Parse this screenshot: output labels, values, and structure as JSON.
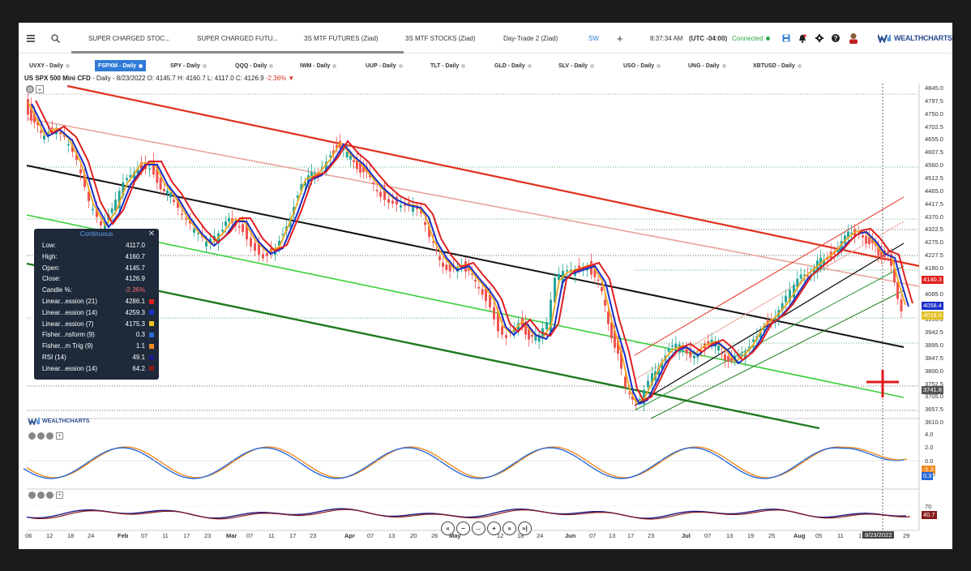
{
  "topbar": {
    "menu_icon": "hamburger-icon",
    "search_icon": "search-icon",
    "tabs": [
      "SUPER CHARGED STOC...",
      "SUPER CHARGED FUTU...",
      "3S MTF FUTURES (Ziad)",
      "3S MTF STOCKS (Ziad)",
      "Day-Trade 2 (Ziad)",
      "SW"
    ],
    "add_label": "+",
    "time": "8:37:34 AM",
    "timezone": "(UTC -04:00)",
    "status": "Connected",
    "brand": "WEALTHCHARTS"
  },
  "symbol_tabs": [
    "UVXY - Daily",
    "FSPXM - Daily",
    "SPY - Daily",
    "QQQ - Daily",
    "IWM - Daily",
    "UUP - Daily",
    "TLT - Daily",
    "GLD - Daily",
    "SLV - Daily",
    "USO - Daily",
    "UNG - Daily",
    "XBTUSD - Daily"
  ],
  "chart_header": {
    "symbol": "US SPX 500 Mini CFD",
    "detail": "- Daily - 8/23/2022 O: 4145.7 H: 4160.7 L: 4117.0 C: 4126.9",
    "change": "-2.36%",
    "arrow": "▼"
  },
  "data_window": {
    "title": "Continuous",
    "rows": [
      {
        "label": "Low:",
        "value": "4117.0",
        "swatch": ""
      },
      {
        "label": "High:",
        "value": "4160.7",
        "swatch": ""
      },
      {
        "label": "Open:",
        "value": "4145.7",
        "swatch": ""
      },
      {
        "label": "Close:",
        "value": "4126.9",
        "swatch": ""
      },
      {
        "label": "Candle %:",
        "value": "-2.36%",
        "swatch": ""
      },
      {
        "label": "Linear...ession (21)",
        "value": "4286.1",
        "swatch": "#e02020"
      },
      {
        "label": "Linear...ession (14)",
        "value": "4259.3",
        "swatch": "#1a2ec8"
      },
      {
        "label": "Linear...ession (7)",
        "value": "4175.3",
        "swatch": "#f0c020"
      },
      {
        "label": "Fisher...nsform (9)",
        "value": "0.3",
        "swatch": "#2a6ad8"
      },
      {
        "label": "Fisher...m Trig (9)",
        "value": "1.1",
        "swatch": "#f08a20"
      },
      {
        "label": "RSI (14)",
        "value": "49.1",
        "swatch": "#1a1a8a"
      },
      {
        "label": "Linear...ession (14)",
        "value": "64.2",
        "swatch": "#8a1a1a"
      }
    ]
  },
  "price_axis": [
    "4845.0",
    "4797.5",
    "4750.0",
    "4702.5",
    "4655.0",
    "4607.5",
    "4560.0",
    "4512.5",
    "4465.0",
    "4417.5",
    "4370.0",
    "4322.5",
    "4275.0",
    "4227.5",
    "4180.0",
    "4132.5",
    "4085.0",
    "4037.5",
    "3990.0",
    "3942.5",
    "3895.0",
    "3847.5",
    "3800.0",
    "3752.5",
    "3705.0",
    "3657.5",
    "3610.0"
  ],
  "price_tags": [
    {
      "text": "4140.3",
      "color": "#e02020"
    },
    {
      "text": "4058.4",
      "color": "#1a2ec8"
    },
    {
      "text": "4018.0",
      "color": "#e0c020"
    },
    {
      "text": "3741.8",
      "color": "#555555"
    }
  ],
  "fisher_axis": [
    "4.0",
    "2.0",
    "0.0",
    "-2.0"
  ],
  "fisher_tags": [
    {
      "text": "-1.3",
      "color": "#f08a20"
    },
    {
      "text": "0.3",
      "color": "#2a6ad8"
    }
  ],
  "rsi_axis": [
    "70"
  ],
  "rsi_tag": {
    "text": "40.7",
    "color": "#8a1a1a"
  },
  "date_axis": [
    {
      "text": "06",
      "bold": false
    },
    {
      "text": "12",
      "bold": false
    },
    {
      "text": "18",
      "bold": false
    },
    {
      "text": "24",
      "bold": false
    },
    {
      "text": "Feb",
      "bold": true
    },
    {
      "text": "07",
      "bold": false
    },
    {
      "text": "11",
      "bold": false
    },
    {
      "text": "17",
      "bold": false
    },
    {
      "text": "23",
      "bold": false
    },
    {
      "text": "Mar",
      "bold": true
    },
    {
      "text": "07",
      "bold": false
    },
    {
      "text": "11",
      "bold": false
    },
    {
      "text": "17",
      "bold": false
    },
    {
      "text": "23",
      "bold": false
    },
    {
      "text": "Apr",
      "bold": true
    },
    {
      "text": "07",
      "bold": false
    },
    {
      "text": "13",
      "bold": false
    },
    {
      "text": "20",
      "bold": false
    },
    {
      "text": "26",
      "bold": false
    },
    {
      "text": "May",
      "bold": true
    },
    {
      "text": "12",
      "bold": false
    },
    {
      "text": "18",
      "bold": false
    },
    {
      "text": "24",
      "bold": false
    },
    {
      "text": "Jun",
      "bold": true
    },
    {
      "text": "07",
      "bold": false
    },
    {
      "text": "13",
      "bold": false
    },
    {
      "text": "17",
      "bold": false
    },
    {
      "text": "23",
      "bold": false
    },
    {
      "text": "Jul",
      "bold": true
    },
    {
      "text": "07",
      "bold": false
    },
    {
      "text": "13",
      "bold": false
    },
    {
      "text": "19",
      "bold": false
    },
    {
      "text": "25",
      "bold": false
    },
    {
      "text": "Aug",
      "bold": true
    },
    {
      "text": "05",
      "bold": false
    },
    {
      "text": "11",
      "bold": false
    },
    {
      "text": "17",
      "bold": false
    },
    {
      "text": "29",
      "bold": false
    }
  ],
  "cursor_date": "8/23/2022",
  "watermark": "WEALTHCHARTS",
  "nav_buttons": [
    "«",
    "−",
    "↔",
    "+",
    "»",
    "»|"
  ],
  "colors": {
    "up": "#26a69a",
    "down": "#ef5350",
    "lr21": "#e02020",
    "lr14": "#1a2ec8",
    "lr7": "#f0a820",
    "accent": "#2f7bd6"
  }
}
